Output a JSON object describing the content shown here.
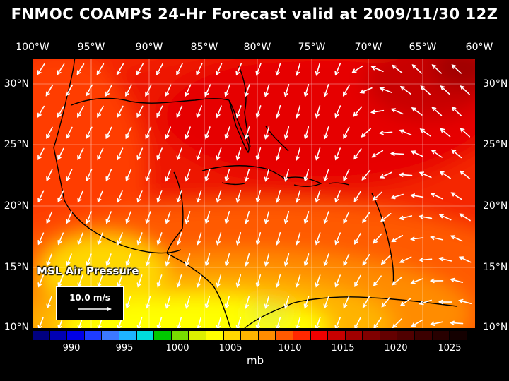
{
  "title": "FNMOC COAMPS 24-Hr Forecast valid at 2009/11/30 12Z",
  "lon_labels": [
    "100°W",
    "95°W",
    "90°W",
    "85°W",
    "80°W",
    "75°W",
    "70°W",
    "65°W",
    "60°W"
  ],
  "lat_labels": [
    "30°N",
    "25°N",
    "20°N",
    "15°N",
    "10°N"
  ],
  "layer_label": "MSL Air Pressure",
  "vector_reference": "10.0 m/s",
  "colorbar": {
    "ticks": [
      "990",
      "995",
      "1000",
      "1005",
      "1010",
      "1015",
      "1020",
      "1025"
    ],
    "unit": "mb",
    "colors": [
      "#000080",
      "#0000b4",
      "#0000e6",
      "#1e3cff",
      "#3c78ff",
      "#1eb4ff",
      "#00dcdc",
      "#00c800",
      "#78dc00",
      "#dcf000",
      "#ffff00",
      "#ffd700",
      "#ffb400",
      "#ff8c00",
      "#ff5a00",
      "#ff2800",
      "#f00000",
      "#c80000",
      "#a00000",
      "#800000",
      "#640000",
      "#500000",
      "#3c0000",
      "#280000",
      "#140000"
    ]
  },
  "map": {
    "lon_range": [
      -100,
      -60
    ],
    "lat_range": [
      10,
      32
    ],
    "pressure_field_colors": {
      "1009": "#e6f032",
      "1010": "#ffff00",
      "1011": "#ffd700",
      "1012": "#ffb400",
      "1014": "#ff8c00",
      "1015": "#ff5a00",
      "1016": "#ff3c00",
      "1017": "#f52800",
      "1018": "#ee1400",
      "1019": "#e60000",
      "1021": "#c80000",
      "1024": "#a00000"
    },
    "wind_arrow_color": "#ffffff",
    "coastline_color": "#000000"
  }
}
